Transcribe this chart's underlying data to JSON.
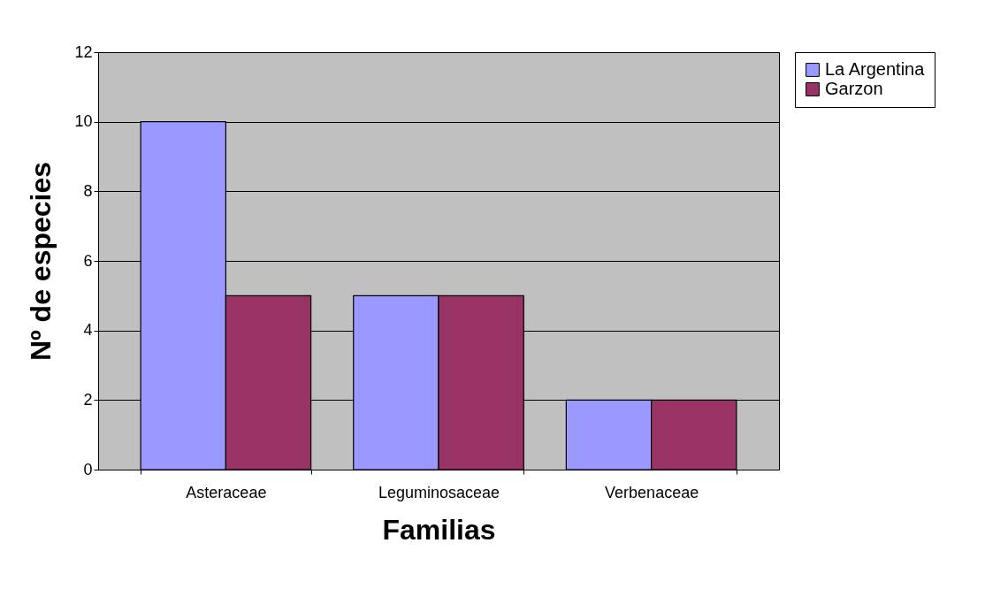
{
  "chart_data": {
    "type": "bar",
    "xlabel": "Familias",
    "ylabel": "Nº de especies",
    "categories": [
      "Asteraceae",
      "Leguminosaceae",
      "Verbenaceae"
    ],
    "series": [
      {
        "name": "La Argentina",
        "color": "#9999ff",
        "values": [
          10,
          5,
          2
        ]
      },
      {
        "name": "Garzon",
        "color": "#993366",
        "values": [
          5,
          5,
          2
        ]
      }
    ],
    "ylim": [
      0,
      12
    ],
    "yticks": [
      0,
      2,
      4,
      6,
      8,
      10,
      12
    ],
    "grid": "y",
    "legend": "right"
  }
}
